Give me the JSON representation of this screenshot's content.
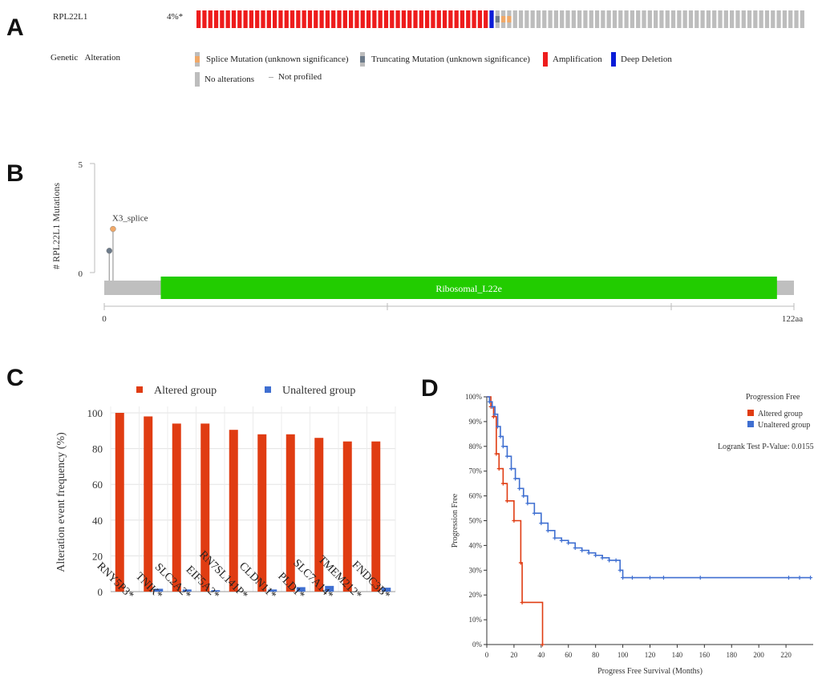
{
  "panels": {
    "a": "A",
    "b": "B",
    "c": "C",
    "d": "D"
  },
  "panel_a": {
    "gene": "RPL22L1",
    "freq": "4%*",
    "legend_title_1": "Genetic",
    "legend_title_2": "Alteration",
    "legend": [
      {
        "label": "Splice Mutation (unknown significance)",
        "color": "#f0a868"
      },
      {
        "label": "Truncating Mutation (unknown significance)",
        "color": "#6d7b8a"
      },
      {
        "label": "Amplification",
        "color": "#ee1c1c"
      },
      {
        "label": "Deep Deletion",
        "color": "#0a1cd8"
      },
      {
        "label": "No alterations",
        "color": "#bdbdbd"
      },
      {
        "label": "Not profiled",
        "color": "#cfcfcf"
      }
    ],
    "track": {
      "amplified": 50,
      "deep_deletion": 1,
      "truncating": 1,
      "splice": 2,
      "total": 104
    }
  },
  "chart_data": [
    {
      "type": "lollipop",
      "ylabel": "# RPL22L1 Mutations",
      "yticks": [
        "0",
        "5"
      ],
      "ylim": [
        0,
        5
      ],
      "xlim": [
        0,
        122
      ],
      "xticks": [
        "0",
        "122aa"
      ],
      "domain": {
        "name": "Ribosomal_L22e",
        "start": 10,
        "end": 119,
        "color": "#22cc00"
      },
      "mutations": [
        {
          "position": 1,
          "count": 1,
          "color": "#6d7b8a",
          "label": ""
        },
        {
          "position": 3,
          "count": 2,
          "color": "#f0a868",
          "label": "X3_splice"
        }
      ]
    },
    {
      "type": "bar",
      "ylabel": "Alteration event frequency (%)",
      "ylim": [
        0,
        100
      ],
      "yticks": [
        0,
        20,
        40,
        60,
        80,
        100
      ],
      "categories": [
        "RNY5P3*",
        "TNIK*",
        "SLC2A2*",
        "EIF5A2*",
        "RN7SL141P*",
        "CLDN11*",
        "PLD1*",
        "SLC7A14*",
        "TMEM212*",
        "FNDC3B*"
      ],
      "series": [
        {
          "name": "Altered group",
          "color": "#e03c12",
          "values": [
            100,
            98,
            94,
            94,
            90.5,
            88,
            88,
            86,
            84,
            84
          ]
        },
        {
          "name": "Unaltered group",
          "color": "#3f6fd1",
          "values": [
            0,
            1.6,
            1.2,
            0.8,
            0,
            1.2,
            2.5,
            3.2,
            0,
            2.2
          ]
        }
      ]
    },
    {
      "type": "line",
      "subtype": "kaplan-meier",
      "xlabel": "Progress Free Survival (Months)",
      "ylabel": "Progression Free",
      "xlim": [
        0,
        240
      ],
      "ylim": [
        0,
        100
      ],
      "xticks": [
        0,
        20,
        40,
        60,
        80,
        100,
        120,
        140,
        160,
        180,
        200,
        220
      ],
      "yticks": [
        "0%",
        "10%",
        "20%",
        "30%",
        "40%",
        "50%",
        "60%",
        "70%",
        "80%",
        "90%",
        "100%"
      ],
      "legend_title": "Progression Free",
      "pvalue": "Logrank Test P-Value: 0.0155",
      "series": [
        {
          "name": "Altered group",
          "color": "#e03c12",
          "x": [
            0,
            3,
            5,
            7,
            9,
            12,
            15,
            20,
            25,
            26,
            41
          ],
          "y": [
            100,
            96,
            92,
            77,
            71,
            65,
            58,
            50,
            33,
            17,
            0
          ]
        },
        {
          "name": "Unaltered group",
          "color": "#3f6fd1",
          "x": [
            0,
            2,
            4,
            6,
            8,
            10,
            12,
            15,
            18,
            21,
            24,
            27,
            30,
            35,
            40,
            45,
            50,
            55,
            60,
            65,
            70,
            75,
            80,
            85,
            90,
            95,
            98,
            100,
            107,
            120,
            130,
            157,
            222,
            230,
            238
          ],
          "y": [
            100,
            98,
            96,
            93,
            88,
            84,
            80,
            76,
            71,
            67,
            63,
            60,
            57,
            53,
            49,
            46,
            43,
            42,
            41,
            39,
            38,
            37,
            36,
            35,
            34,
            34,
            30,
            27,
            27,
            27,
            27,
            27,
            27,
            27,
            27
          ]
        }
      ]
    }
  ]
}
